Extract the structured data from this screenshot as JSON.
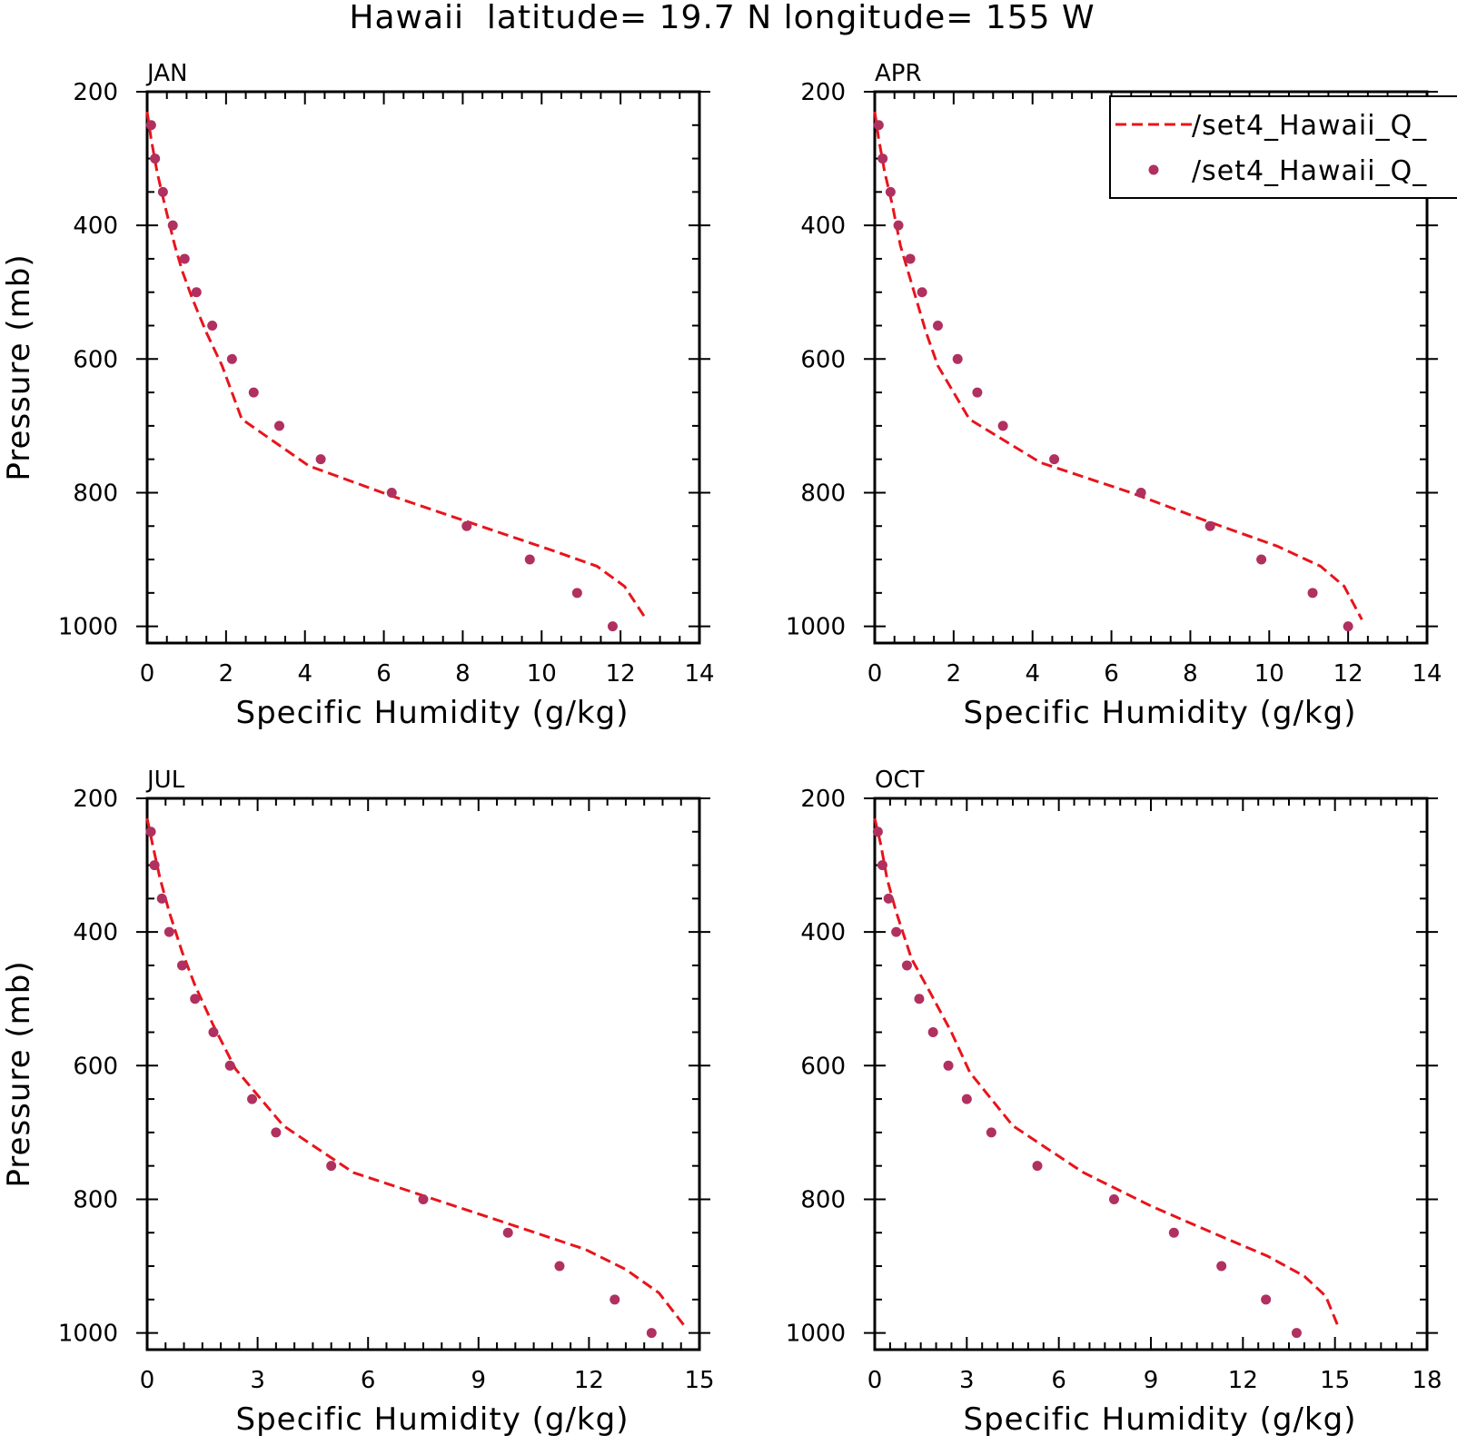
{
  "title": "Hawaii  latitude= 19.7 N longitude= 155 W",
  "colors": {
    "model_line": "#e8141c",
    "obs_points": "#b03060",
    "frame": "#000000",
    "background": "#ffffff"
  },
  "legend": {
    "placement": "top-right of APR panel",
    "entries": [
      {
        "label": "/set4_Hawaii_Q_",
        "style": "dashed-line"
      },
      {
        "label": "/set4_Hawaii_Q_",
        "style": "dots"
      }
    ]
  },
  "chart_data": [
    {
      "type": "line",
      "panel": "JAN",
      "title": "JAN",
      "xlabel": "Specific Humidity (g/kg)",
      "ylabel": "Pressure (mb)",
      "xlim": [
        0,
        14
      ],
      "ylim": [
        1025,
        200
      ],
      "y_inverted": true,
      "xticks": [
        0,
        2,
        4,
        6,
        8,
        10,
        12,
        14
      ],
      "yticks": [
        200,
        400,
        600,
        800,
        1000
      ],
      "x_minor_step": 0.5,
      "y_minor_step": 50,
      "series": [
        {
          "style": "dashed-line",
          "points": [
            [
              0.0,
              230
            ],
            [
              0.1,
              270
            ],
            [
              0.25,
              320
            ],
            [
              0.45,
              370
            ],
            [
              0.7,
              430
            ],
            [
              0.9,
              470
            ],
            [
              1.15,
              510
            ],
            [
              1.5,
              560
            ],
            [
              1.9,
              610
            ],
            [
              2.4,
              690
            ],
            [
              4.1,
              760
            ],
            [
              6.2,
              805
            ],
            [
              8.2,
              845
            ],
            [
              10.2,
              885
            ],
            [
              11.4,
              910
            ],
            [
              12.1,
              940
            ],
            [
              12.6,
              985
            ]
          ]
        },
        {
          "style": "dots",
          "points": [
            [
              0.1,
              250
            ],
            [
              0.2,
              300
            ],
            [
              0.4,
              350
            ],
            [
              0.65,
              400
            ],
            [
              0.95,
              450
            ],
            [
              1.25,
              500
            ],
            [
              1.65,
              550
            ],
            [
              2.15,
              600
            ],
            [
              2.7,
              650
            ],
            [
              3.35,
              700
            ],
            [
              4.4,
              750
            ],
            [
              6.2,
              800
            ],
            [
              8.1,
              850
            ],
            [
              9.7,
              900
            ],
            [
              10.9,
              950
            ],
            [
              11.8,
              1000
            ]
          ]
        }
      ]
    },
    {
      "type": "line",
      "panel": "APR",
      "title": "APR",
      "xlabel": "Specific Humidity (g/kg)",
      "ylabel": "Pressure (mb)",
      "xlim": [
        0,
        14
      ],
      "ylim": [
        1025,
        200
      ],
      "y_inverted": true,
      "xticks": [
        0,
        2,
        4,
        6,
        8,
        10,
        12,
        14
      ],
      "yticks": [
        200,
        400,
        600,
        800,
        1000
      ],
      "x_minor_step": 0.5,
      "y_minor_step": 50,
      "series": [
        {
          "style": "dashed-line",
          "points": [
            [
              0.0,
              230
            ],
            [
              0.1,
              270
            ],
            [
              0.25,
              320
            ],
            [
              0.45,
              370
            ],
            [
              0.65,
              430
            ],
            [
              0.85,
              470
            ],
            [
              1.05,
              510
            ],
            [
              1.3,
              560
            ],
            [
              1.6,
              610
            ],
            [
              2.4,
              690
            ],
            [
              4.2,
              755
            ],
            [
              6.5,
              800
            ],
            [
              8.3,
              840
            ],
            [
              10.2,
              880
            ],
            [
              11.3,
              910
            ],
            [
              11.9,
              940
            ],
            [
              12.35,
              990
            ]
          ]
        },
        {
          "style": "dots",
          "points": [
            [
              0.1,
              250
            ],
            [
              0.2,
              300
            ],
            [
              0.4,
              350
            ],
            [
              0.6,
              400
            ],
            [
              0.9,
              450
            ],
            [
              1.2,
              500
            ],
            [
              1.6,
              550
            ],
            [
              2.1,
              600
            ],
            [
              2.6,
              650
            ],
            [
              3.25,
              700
            ],
            [
              4.55,
              750
            ],
            [
              6.75,
              800
            ],
            [
              8.5,
              850
            ],
            [
              9.8,
              900
            ],
            [
              11.1,
              950
            ],
            [
              12.0,
              1000
            ]
          ]
        }
      ]
    },
    {
      "type": "line",
      "panel": "JUL",
      "title": "JUL",
      "xlabel": "Specific Humidity (g/kg)",
      "ylabel": "Pressure (mb)",
      "xlim": [
        0,
        15
      ],
      "ylim": [
        1025,
        200
      ],
      "y_inverted": true,
      "xticks": [
        0,
        3,
        6,
        9,
        12,
        15
      ],
      "yticks": [
        200,
        400,
        600,
        800,
        1000
      ],
      "x_minor_step": 0.5,
      "y_minor_step": 50,
      "series": [
        {
          "style": "dashed-line",
          "points": [
            [
              0.0,
              230
            ],
            [
              0.15,
              270
            ],
            [
              0.35,
              320
            ],
            [
              0.6,
              370
            ],
            [
              0.95,
              430
            ],
            [
              1.3,
              480
            ],
            [
              1.8,
              540
            ],
            [
              2.4,
              605
            ],
            [
              3.7,
              690
            ],
            [
              5.6,
              760
            ],
            [
              7.8,
              800
            ],
            [
              10.0,
              840
            ],
            [
              11.9,
              875
            ],
            [
              13.0,
              905
            ],
            [
              13.9,
              940
            ],
            [
              14.6,
              990
            ]
          ]
        },
        {
          "style": "dots",
          "points": [
            [
              0.1,
              250
            ],
            [
              0.2,
              300
            ],
            [
              0.4,
              350
            ],
            [
              0.6,
              400
            ],
            [
              0.95,
              450
            ],
            [
              1.3,
              500
            ],
            [
              1.8,
              550
            ],
            [
              2.25,
              600
            ],
            [
              2.85,
              650
            ],
            [
              3.5,
              700
            ],
            [
              5.0,
              750
            ],
            [
              7.5,
              800
            ],
            [
              9.8,
              850
            ],
            [
              11.2,
              900
            ],
            [
              12.7,
              950
            ],
            [
              13.7,
              1000
            ]
          ]
        }
      ]
    },
    {
      "type": "line",
      "panel": "OCT",
      "title": "OCT",
      "xlabel": "Specific Humidity (g/kg)",
      "ylabel": "Pressure (mb)",
      "xlim": [
        0,
        18
      ],
      "ylim": [
        1025,
        200
      ],
      "y_inverted": true,
      "xticks": [
        0,
        3,
        6,
        9,
        12,
        15,
        18
      ],
      "yticks": [
        200,
        400,
        600,
        800,
        1000
      ],
      "x_minor_step": 0.5,
      "y_minor_step": 50,
      "series": [
        {
          "style": "dashed-line",
          "points": [
            [
              0.0,
              230
            ],
            [
              0.2,
              270
            ],
            [
              0.4,
              320
            ],
            [
              0.7,
              370
            ],
            [
              1.2,
              440
            ],
            [
              1.8,
              490
            ],
            [
              2.5,
              550
            ],
            [
              3.1,
              610
            ],
            [
              4.5,
              690
            ],
            [
              6.8,
              760
            ],
            [
              9.0,
              810
            ],
            [
              11.0,
              850
            ],
            [
              12.8,
              885
            ],
            [
              14.0,
              915
            ],
            [
              14.7,
              945
            ],
            [
              15.1,
              990
            ]
          ]
        },
        {
          "style": "dots",
          "points": [
            [
              0.1,
              250
            ],
            [
              0.25,
              300
            ],
            [
              0.45,
              350
            ],
            [
              0.7,
              400
            ],
            [
              1.05,
              450
            ],
            [
              1.45,
              500
            ],
            [
              1.9,
              550
            ],
            [
              2.4,
              600
            ],
            [
              3.0,
              650
            ],
            [
              3.8,
              700
            ],
            [
              5.3,
              750
            ],
            [
              7.8,
              800
            ],
            [
              9.75,
              850
            ],
            [
              11.3,
              900
            ],
            [
              12.75,
              950
            ],
            [
              13.75,
              1000
            ]
          ]
        }
      ]
    }
  ]
}
